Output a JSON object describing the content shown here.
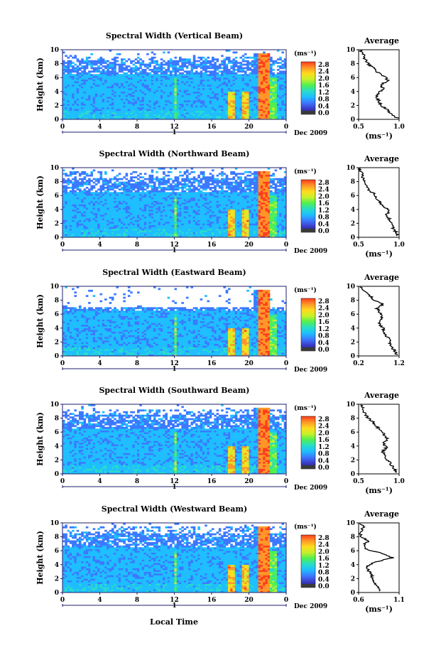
{
  "chart_data": [
    {
      "type": "heatmap",
      "title": "Spectral Width (Vertical Beam)",
      "ylabel": "Height (km)",
      "xlim": [
        0,
        24
      ],
      "ylim": [
        0,
        10
      ],
      "x_ticks": [
        "0",
        "4",
        "8",
        "12",
        "16",
        "20",
        "0"
      ],
      "y_ticks": [
        "0",
        "2",
        "4",
        "6",
        "8",
        "10"
      ],
      "date_label": "Dec 2009",
      "day_marker": "1",
      "colorbar": {
        "unit": "(ms⁻¹)",
        "ticks": [
          "0.0",
          "0.4",
          "0.8",
          "1.2",
          "1.6",
          "2.0",
          "2.4",
          "2.8"
        ]
      },
      "average": {
        "title": "Average",
        "xlabel": "(ms⁻¹)",
        "xlim": [
          0.5,
          1.0
        ],
        "x_ticks": [
          "0.5",
          "1.0"
        ],
        "profile": [
          [
            0.98,
            0.2
          ],
          [
            0.9,
            0.8
          ],
          [
            0.85,
            1.4
          ],
          [
            0.78,
            2.0
          ],
          [
            0.75,
            2.6
          ],
          [
            0.72,
            3.2
          ],
          [
            0.74,
            3.8
          ],
          [
            0.8,
            4.4
          ],
          [
            0.78,
            5.0
          ],
          [
            0.86,
            5.6
          ],
          [
            0.82,
            6.2
          ],
          [
            0.72,
            6.8
          ],
          [
            0.68,
            7.4
          ],
          [
            0.62,
            8.0
          ],
          [
            0.58,
            8.6
          ],
          [
            0.56,
            9.4
          ],
          [
            0.52,
            10.0
          ]
        ]
      }
    },
    {
      "type": "heatmap",
      "title": "Spectral Width (Northward Beam)",
      "ylabel": "Height (km)",
      "xlim": [
        0,
        24
      ],
      "ylim": [
        0,
        10
      ],
      "x_ticks": [
        "0",
        "4",
        "8",
        "12",
        "16",
        "20",
        "0"
      ],
      "y_ticks": [
        "0",
        "2",
        "4",
        "6",
        "8",
        "10"
      ],
      "date_label": "Dec 2009",
      "day_marker": "1",
      "colorbar": {
        "unit": "(ms⁻¹)",
        "ticks": [
          "0.0",
          "0.4",
          "0.8",
          "1.2",
          "1.6",
          "2.0",
          "2.4",
          "2.8"
        ]
      },
      "average": {
        "title": "Average",
        "xlabel": "(ms⁻¹)",
        "xlim": [
          0.5,
          1.0
        ],
        "x_ticks": [
          "0.5",
          "1.0"
        ],
        "profile": [
          [
            0.98,
            0.2
          ],
          [
            0.96,
            0.8
          ],
          [
            0.92,
            1.4
          ],
          [
            0.9,
            2.0
          ],
          [
            0.88,
            2.6
          ],
          [
            0.84,
            3.2
          ],
          [
            0.88,
            3.8
          ],
          [
            0.82,
            4.4
          ],
          [
            0.76,
            5.0
          ],
          [
            0.72,
            5.6
          ],
          [
            0.7,
            6.2
          ],
          [
            0.62,
            6.8
          ],
          [
            0.6,
            7.4
          ],
          [
            0.58,
            8.0
          ],
          [
            0.55,
            8.6
          ],
          [
            0.53,
            9.4
          ],
          [
            0.5,
            10.0
          ]
        ]
      }
    },
    {
      "type": "heatmap",
      "title": "Spectral Width (Eastward Beam)",
      "ylabel": "Height (km)",
      "xlim": [
        0,
        24
      ],
      "ylim": [
        0,
        10
      ],
      "x_ticks": [
        "0",
        "4",
        "8",
        "12",
        "16",
        "20",
        "0"
      ],
      "y_ticks": [
        "0",
        "2",
        "4",
        "6",
        "8",
        "10"
      ],
      "date_label": "Dec 2009",
      "day_marker": "1",
      "colorbar": {
        "unit": "(ms⁻¹)",
        "ticks": [
          "0.0",
          "0.4",
          "0.8",
          "1.2",
          "1.6",
          "2.0",
          "2.4",
          "2.8"
        ]
      },
      "average": {
        "title": "Average",
        "xlabel": "",
        "xlim": [
          0.2,
          1.2
        ],
        "x_ticks": [
          "0.2",
          "1.2"
        ],
        "profile": [
          [
            1.15,
            0.2
          ],
          [
            1.08,
            0.8
          ],
          [
            1.0,
            1.4
          ],
          [
            0.98,
            2.0
          ],
          [
            0.92,
            2.6
          ],
          [
            0.85,
            3.2
          ],
          [
            0.82,
            3.8
          ],
          [
            0.75,
            4.4
          ],
          [
            0.7,
            5.0
          ],
          [
            0.78,
            5.6
          ],
          [
            0.72,
            6.2
          ],
          [
            0.66,
            6.8
          ],
          [
            0.8,
            7.4
          ],
          [
            0.6,
            8.0
          ],
          [
            0.48,
            8.6
          ],
          [
            0.35,
            9.4
          ],
          [
            0.22,
            10.0
          ]
        ]
      }
    },
    {
      "type": "heatmap",
      "title": "Spectral Width (Southward Beam)",
      "ylabel": "Height (km)",
      "xlim": [
        0,
        24
      ],
      "ylim": [
        0,
        10
      ],
      "x_ticks": [
        "0",
        "4",
        "8",
        "12",
        "16",
        "20",
        "0"
      ],
      "y_ticks": [
        "0",
        "2",
        "4",
        "6",
        "8",
        "10"
      ],
      "date_label": "Dec 2009",
      "day_marker": "1",
      "colorbar": {
        "unit": "(ms⁻¹)",
        "ticks": [
          "0.0",
          "0.4",
          "0.8",
          "1.2",
          "1.6",
          "2.0",
          "2.4",
          "2.8"
        ]
      },
      "average": {
        "title": "Average",
        "xlabel": "(ms⁻¹)",
        "xlim": [
          0.5,
          1.0
        ],
        "x_ticks": [
          "0.5",
          "1.0"
        ],
        "profile": [
          [
            0.98,
            0.2
          ],
          [
            0.94,
            0.8
          ],
          [
            0.9,
            1.4
          ],
          [
            0.86,
            2.0
          ],
          [
            0.82,
            2.6
          ],
          [
            0.8,
            3.2
          ],
          [
            0.84,
            3.8
          ],
          [
            0.8,
            4.4
          ],
          [
            0.86,
            5.0
          ],
          [
            0.82,
            5.6
          ],
          [
            0.78,
            6.2
          ],
          [
            0.72,
            6.8
          ],
          [
            0.68,
            7.4
          ],
          [
            0.62,
            8.0
          ],
          [
            0.58,
            8.6
          ],
          [
            0.55,
            9.4
          ],
          [
            0.52,
            10.0
          ]
        ]
      }
    },
    {
      "type": "heatmap",
      "title": "Spectral Width (Westward Beam)",
      "ylabel": "Height (km)",
      "xlim": [
        0,
        24
      ],
      "ylim": [
        0,
        10
      ],
      "x_ticks": [
        "0",
        "4",
        "8",
        "12",
        "16",
        "20",
        "0"
      ],
      "y_ticks": [
        "0",
        "2",
        "4",
        "6",
        "8",
        "10"
      ],
      "date_label": "Dec 2009",
      "day_marker": "1",
      "colorbar": {
        "unit": "(ms⁻¹)",
        "ticks": [
          "0.0",
          "0.4",
          "0.8",
          "1.2",
          "1.6",
          "2.0",
          "2.4",
          "2.8"
        ]
      },
      "average": {
        "title": "Average",
        "xlabel": "(ms⁻¹)",
        "xlim": [
          0.6,
          1.1
        ],
        "x_ticks": [
          "0.6",
          "1.1"
        ],
        "profile": [
          [
            0.85,
            0.2
          ],
          [
            0.84,
            0.8
          ],
          [
            0.8,
            1.4
          ],
          [
            0.78,
            2.0
          ],
          [
            0.75,
            2.6
          ],
          [
            0.72,
            3.2
          ],
          [
            0.7,
            3.8
          ],
          [
            0.82,
            4.4
          ],
          [
            1.02,
            5.0
          ],
          [
            0.9,
            5.6
          ],
          [
            0.7,
            6.2
          ],
          [
            0.66,
            6.8
          ],
          [
            0.72,
            7.4
          ],
          [
            0.64,
            8.0
          ],
          [
            0.62,
            8.6
          ],
          [
            0.66,
            9.4
          ],
          [
            0.62,
            10.0
          ]
        ]
      }
    }
  ],
  "x_axis_label": "Local Time",
  "colors": {
    "colormap": [
      "#1e1e6e",
      "#3c3cc8",
      "#3c78ff",
      "#1ebeff",
      "#28dcc8",
      "#50f050",
      "#c8f028",
      "#ffdc1e",
      "#ff9628",
      "#ff3c1e"
    ],
    "frame": "#1e1e6e"
  }
}
